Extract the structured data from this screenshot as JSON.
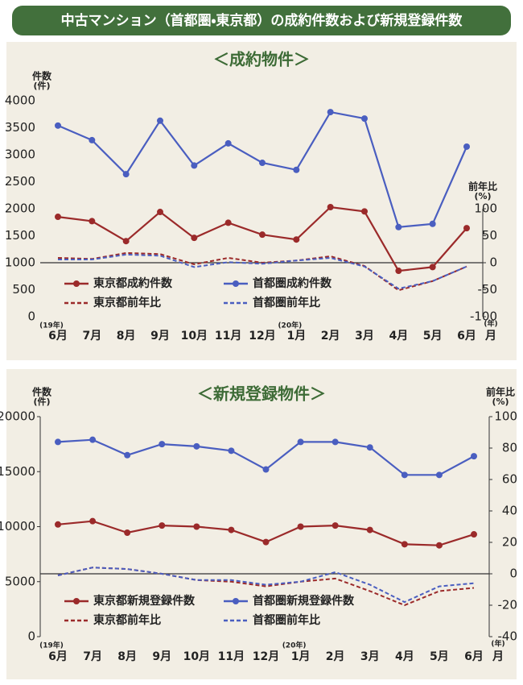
{
  "title": "中古マンション（首都圏・東京都）の成約件数および新規登録件数",
  "chart_data": [
    {
      "type": "line",
      "title": "＜成約物件＞",
      "ylabel": "件数",
      "ylabel_unit": "(件)",
      "y2label": "前年比",
      "y2label_unit": "(%)",
      "xlabel_year": "(年)",
      "xlabel": "月",
      "categories": [
        "6月",
        "7月",
        "8月",
        "9月",
        "10月",
        "11月",
        "12月",
        "1月",
        "2月",
        "3月",
        "4月",
        "5月",
        "6月"
      ],
      "year_labels": [
        "(19年)",
        null,
        null,
        null,
        null,
        null,
        null,
        "(20年)",
        null,
        null,
        null,
        null,
        null
      ],
      "ylim": [
        0,
        4000
      ],
      "yticks": [
        0,
        500,
        1000,
        1500,
        2000,
        2500,
        3000,
        3500,
        4000
      ],
      "y2lim": [
        -100,
        300
      ],
      "y2ticks": [
        -100,
        -50,
        0,
        50,
        100
      ],
      "legend": "lower left",
      "series": [
        {
          "name": "東京都成約件数",
          "color": "#9b2a2a",
          "style": "solid",
          "values": [
            1850,
            1770,
            1400,
            1940,
            1460,
            1740,
            1520,
            1430,
            2030,
            1950,
            850,
            920,
            1640
          ]
        },
        {
          "name": "首都圏成約件数",
          "color": "#4a5ec0",
          "style": "solid",
          "values": [
            3540,
            3270,
            2640,
            3630,
            2800,
            3210,
            2850,
            2720,
            3790,
            3670,
            1660,
            1720,
            3150
          ]
        },
        {
          "name": "東京都前年比",
          "color": "#9b2a2a",
          "style": "dashed",
          "axis": "y2",
          "values": [
            9,
            7,
            18,
            16,
            -3,
            9,
            0,
            4,
            12,
            -6,
            -51,
            -34,
            -7
          ]
        },
        {
          "name": "首都圏前年比",
          "color": "#4a5ec0",
          "style": "dashed",
          "axis": "y2",
          "values": [
            6,
            6,
            15,
            13,
            -8,
            1,
            -2,
            4,
            9,
            -7,
            -48,
            -34,
            -7
          ]
        }
      ]
    },
    {
      "type": "line",
      "title": "＜新規登録物件＞",
      "ylabel": "件数",
      "ylabel_unit": "(件)",
      "y2label": "前年比",
      "y2label_unit": "(%)",
      "xlabel_year": "(年)",
      "xlabel": "月",
      "categories": [
        "6月",
        "7月",
        "8月",
        "9月",
        "10月",
        "11月",
        "12月",
        "1月",
        "2月",
        "3月",
        "4月",
        "5月",
        "6月"
      ],
      "year_labels": [
        "(19年)",
        null,
        null,
        null,
        null,
        null,
        null,
        "(20年)",
        null,
        null,
        null,
        null,
        null
      ],
      "ylim": [
        0,
        20000
      ],
      "yticks": [
        0,
        5000,
        10000,
        15000,
        20000
      ],
      "y2lim": [
        -40,
        100
      ],
      "y2ticks": [
        -40,
        -20,
        0,
        20,
        40,
        60,
        80,
        100
      ],
      "legend": "lower left",
      "series": [
        {
          "name": "東京都新規登録件数",
          "color": "#9b2a2a",
          "style": "solid",
          "values": [
            10200,
            10500,
            9450,
            10100,
            10000,
            9700,
            8600,
            10000,
            10100,
            9700,
            8400,
            8300,
            9300
          ]
        },
        {
          "name": "首都圏新規登録件数",
          "color": "#4a5ec0",
          "style": "solid",
          "values": [
            17700,
            17900,
            16500,
            17500,
            17300,
            16900,
            15200,
            17700,
            17700,
            17200,
            14700,
            14700,
            16400
          ]
        },
        {
          "name": "東京都前年比",
          "color": "#9b2a2a",
          "style": "dashed",
          "axis": "y2",
          "values": [
            -1,
            4,
            3,
            0,
            -4,
            -5,
            -8,
            -5,
            -3,
            -11,
            -20,
            -11,
            -9
          ]
        },
        {
          "name": "首都圏前年比",
          "color": "#4a5ec0",
          "style": "dashed",
          "axis": "y2",
          "values": [
            -1,
            4,
            3,
            0,
            -4,
            -4,
            -7,
            -5,
            1,
            -7,
            -18,
            -8,
            -6
          ]
        }
      ]
    }
  ]
}
